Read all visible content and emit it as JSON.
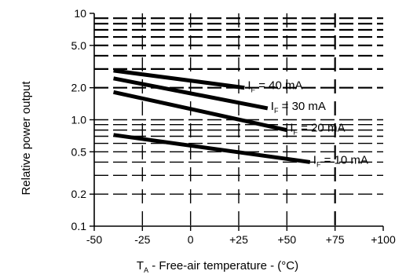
{
  "chart_data": {
    "type": "line",
    "ylabel": "Relative power output",
    "xlabel_prefix": "T",
    "xlabel_sub": "A",
    "xlabel_rest": " - Free-air temperature - (°C)",
    "xlim": [
      -50,
      100
    ],
    "ylim": [
      0.1,
      10
    ],
    "yscale": "log",
    "grid": true,
    "x_ticks": [
      "-50",
      "-25",
      "0",
      "+25",
      "+50",
      "+75",
      "+100"
    ],
    "y_ticks": [
      "0.1",
      "0.2",
      "0.5",
      "1.0",
      "2.0",
      "5.0",
      "10"
    ],
    "series": [
      {
        "name": "IF = 40 mA",
        "label_prefix": "I",
        "label_sub": "F",
        "label_rest": " = 40 mA",
        "x": [
          -40,
          28
        ],
        "y": [
          2.9,
          2.0
        ]
      },
      {
        "name": "IF = 30 mA",
        "label_prefix": "I",
        "label_sub": "F",
        "label_rest": " = 30 mA",
        "x": [
          -40,
          40
        ],
        "y": [
          2.45,
          1.28
        ]
      },
      {
        "name": "IF = 20 mA",
        "label_prefix": "I",
        "label_sub": "F",
        "label_rest": " = 20 mA",
        "x": [
          -40,
          50
        ],
        "y": [
          1.82,
          0.8
        ]
      },
      {
        "name": "IF = 10 mA",
        "label_prefix": "I",
        "label_sub": "F",
        "label_rest": " = 10 mA",
        "x": [
          -40,
          62
        ],
        "y": [
          0.72,
          0.4
        ]
      }
    ]
  }
}
